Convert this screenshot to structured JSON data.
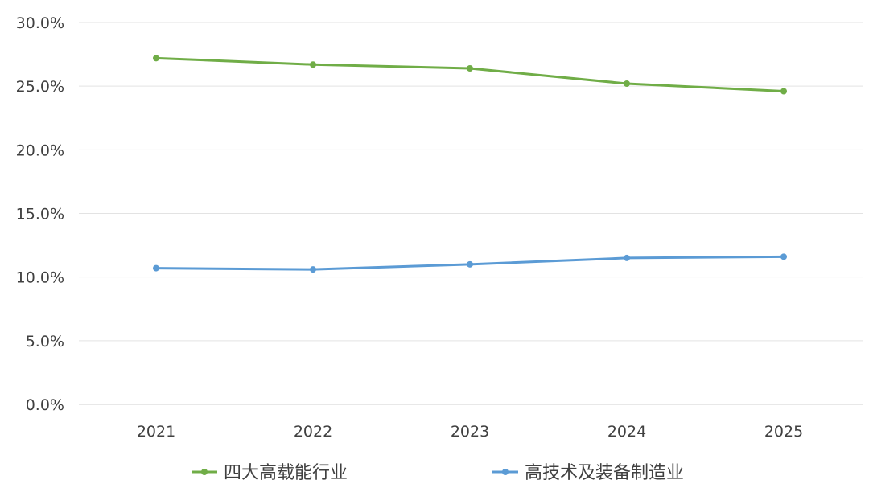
{
  "chart_data": {
    "type": "line",
    "title": "",
    "xlabel": "",
    "ylabel": "",
    "categories": [
      "2021",
      "2022",
      "2023",
      "2024",
      "2025"
    ],
    "ylim": [
      0,
      30
    ],
    "y_ticks": [
      "0.0%",
      "5.0%",
      "10.0%",
      "15.0%",
      "20.0%",
      "25.0%",
      "30.0%"
    ],
    "y_tick_values": [
      0,
      5,
      10,
      15,
      20,
      25,
      30
    ],
    "grid": true,
    "legend_position": "bottom",
    "series": [
      {
        "name": "四大高载能行业",
        "color": "#70ad47",
        "values": [
          27.2,
          26.7,
          26.4,
          25.2,
          24.6
        ]
      },
      {
        "name": "高技术及装备制造业",
        "color": "#5b9bd5",
        "values": [
          10.7,
          10.6,
          11.0,
          11.5,
          11.6
        ]
      }
    ]
  }
}
